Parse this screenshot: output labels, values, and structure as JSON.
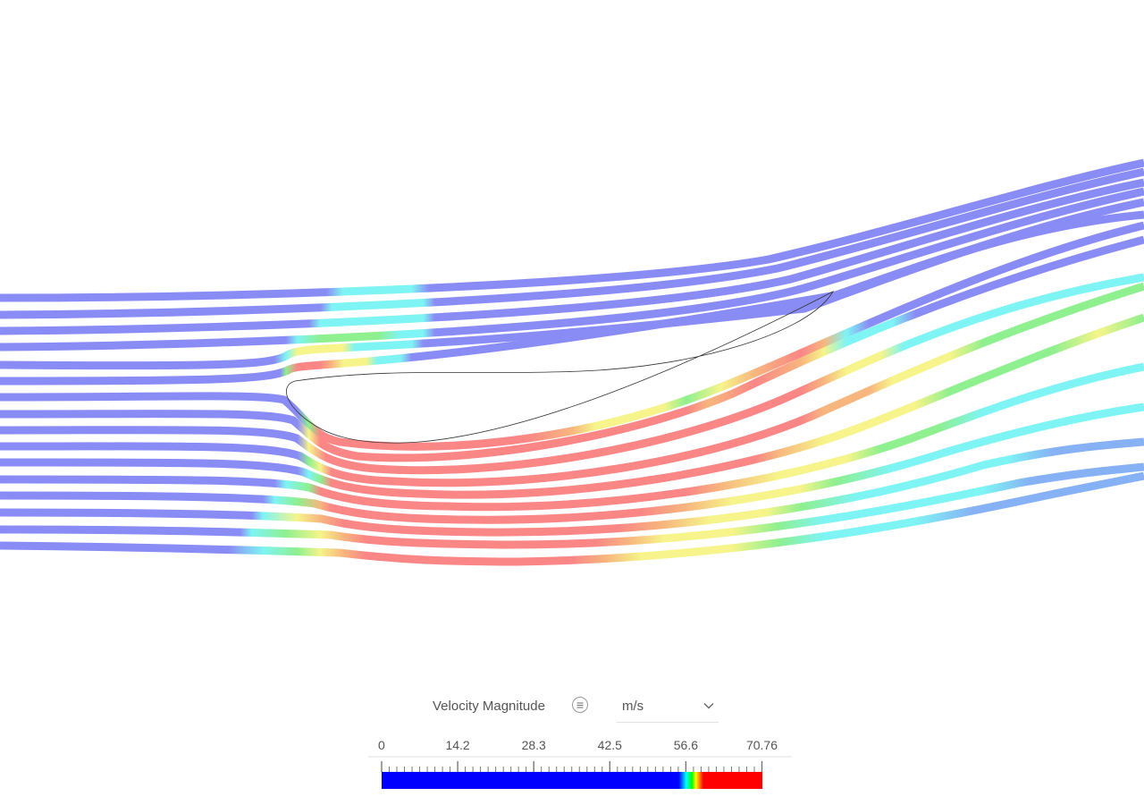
{
  "legend": {
    "title": "Velocity Magnitude",
    "settings_icon": "list-icon",
    "unit_options_icon": "chevron-down-icon",
    "unit": "m/s",
    "min": 0,
    "max": 70.76,
    "tick_labels": [
      "0",
      "14.2",
      "28.3",
      "42.5",
      "56.6",
      "70.76"
    ]
  },
  "colormap": {
    "low": "#0000ff",
    "cyan": "#00ffff",
    "green": "#00ff00",
    "yellow": "#ffff00",
    "high": "#ff0000"
  },
  "streamline_colors": {
    "blue": "#8a8cf5",
    "light_blue": "#86b2f5",
    "cyan": "#7ef4f4",
    "green": "#8ef08e",
    "yellow": "#f6f48a",
    "orange": "#f7b67e",
    "red": "#fa8686"
  },
  "airfoil_outline_color": "#333333"
}
